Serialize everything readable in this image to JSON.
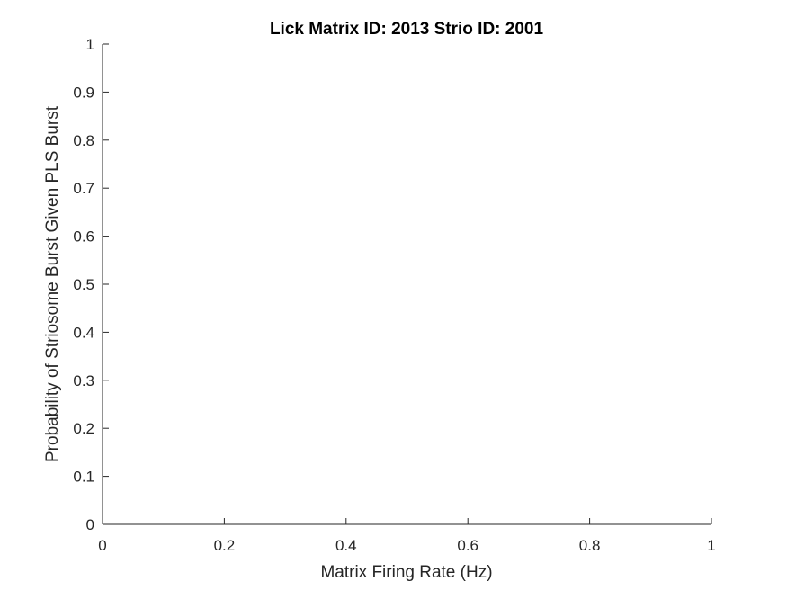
{
  "chart_data": {
    "type": "scatter",
    "title": "Lick Matrix ID: 2013 Strio ID: 2001",
    "xlabel": "Matrix Firing Rate (Hz)",
    "ylabel": "Probability of Striosome Burst Given PLS Burst",
    "xlim": [
      0,
      1
    ],
    "ylim": [
      0,
      1
    ],
    "x_ticks": [
      "0",
      "0.2",
      "0.4",
      "0.6",
      "0.8",
      "1"
    ],
    "y_ticks": [
      "0",
      "0.1",
      "0.2",
      "0.3",
      "0.4",
      "0.5",
      "0.6",
      "0.7",
      "0.8",
      "0.9",
      "1"
    ],
    "series": [],
    "grid": false
  },
  "colors": {
    "axis": "#262626",
    "title": "#000000",
    "background": "#ffffff"
  }
}
